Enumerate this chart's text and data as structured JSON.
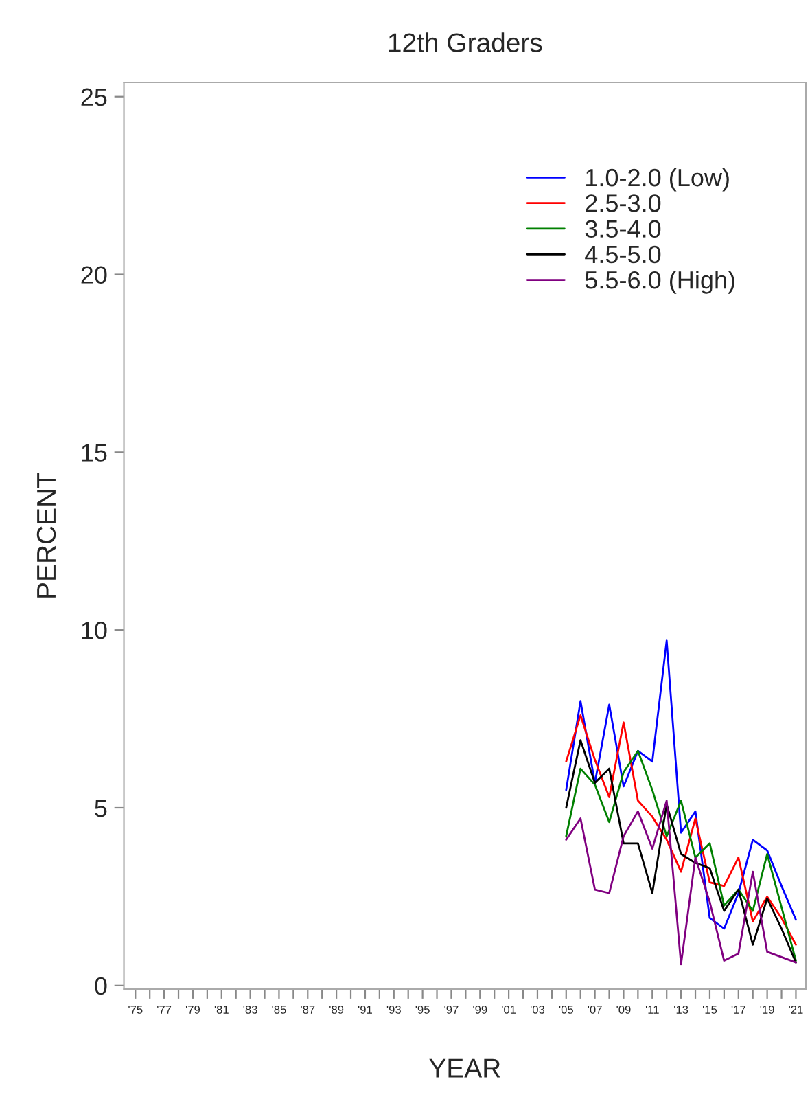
{
  "chart_data": {
    "type": "line",
    "title": "12th Graders",
    "xlabel": "YEAR",
    "ylabel": "PERCENT",
    "x": [
      2005,
      2006,
      2007,
      2008,
      2009,
      2010,
      2011,
      2012,
      2013,
      2014,
      2015,
      2016,
      2017,
      2018,
      2019,
      2020,
      2021
    ],
    "series": [
      {
        "name": "1.0-2.0 (Low)",
        "color": "#0000ff",
        "values": [
          5.5,
          8.0,
          5.7,
          7.9,
          5.6,
          6.6,
          6.3,
          9.7,
          4.3,
          4.9,
          1.9,
          1.6,
          2.6,
          4.1,
          3.8,
          2.8,
          1.85
        ]
      },
      {
        "name": "2.5-3.0",
        "color": "#ff0000",
        "values": [
          6.3,
          7.6,
          6.35,
          5.3,
          7.4,
          5.2,
          4.75,
          4.1,
          3.2,
          4.7,
          2.9,
          2.8,
          3.6,
          1.8,
          2.5,
          1.9,
          1.15
        ]
      },
      {
        "name": "3.5-4.0",
        "color": "#008000",
        "values": [
          4.2,
          6.1,
          5.65,
          4.6,
          6.0,
          6.6,
          5.5,
          4.2,
          5.2,
          3.6,
          4.0,
          2.25,
          2.7,
          2.1,
          3.7,
          2.2,
          0.7
        ]
      },
      {
        "name": "4.5-5.0",
        "color": "#000000",
        "values": [
          5.0,
          6.9,
          5.7,
          6.1,
          4.0,
          4.0,
          2.6,
          5.1,
          3.7,
          3.45,
          3.3,
          2.1,
          2.7,
          1.15,
          2.45,
          1.6,
          0.65
        ]
      },
      {
        "name": "5.5-6.0 (High)",
        "color": "#800080",
        "values": [
          4.1,
          4.7,
          2.7,
          2.6,
          4.2,
          4.9,
          3.85,
          5.2,
          0.6,
          3.6,
          2.35,
          0.7,
          0.9,
          3.2,
          0.95,
          0.8,
          0.65
        ]
      }
    ],
    "xlim": [
      1974.2,
      2021.7
    ],
    "ylim": [
      -0.1,
      25.4
    ],
    "xticks": [
      {
        "value": 1975,
        "label": "'75"
      },
      {
        "value": 1976,
        "label": null
      },
      {
        "value": 1977,
        "label": "'77"
      },
      {
        "value": 1978,
        "label": null
      },
      {
        "value": 1979,
        "label": "'79"
      },
      {
        "value": 1980,
        "label": null
      },
      {
        "value": 1981,
        "label": "'81"
      },
      {
        "value": 1982,
        "label": null
      },
      {
        "value": 1983,
        "label": "'83"
      },
      {
        "value": 1984,
        "label": null
      },
      {
        "value": 1985,
        "label": "'85"
      },
      {
        "value": 1986,
        "label": null
      },
      {
        "value": 1987,
        "label": "'87"
      },
      {
        "value": 1988,
        "label": null
      },
      {
        "value": 1989,
        "label": "'89"
      },
      {
        "value": 1990,
        "label": null
      },
      {
        "value": 1991,
        "label": "'91"
      },
      {
        "value": 1992,
        "label": null
      },
      {
        "value": 1993,
        "label": "'93"
      },
      {
        "value": 1994,
        "label": null
      },
      {
        "value": 1995,
        "label": "'95"
      },
      {
        "value": 1996,
        "label": null
      },
      {
        "value": 1997,
        "label": "'97"
      },
      {
        "value": 1998,
        "label": null
      },
      {
        "value": 1999,
        "label": "'99"
      },
      {
        "value": 2000,
        "label": null
      },
      {
        "value": 2001,
        "label": "'01"
      },
      {
        "value": 2002,
        "label": null
      },
      {
        "value": 2003,
        "label": "'03"
      },
      {
        "value": 2004,
        "label": null
      },
      {
        "value": 2005,
        "label": "'05"
      },
      {
        "value": 2006,
        "label": null
      },
      {
        "value": 2007,
        "label": "'07"
      },
      {
        "value": 2008,
        "label": null
      },
      {
        "value": 2009,
        "label": "'09"
      },
      {
        "value": 2010,
        "label": null
      },
      {
        "value": 2011,
        "label": "'11"
      },
      {
        "value": 2012,
        "label": null
      },
      {
        "value": 2013,
        "label": "'13"
      },
      {
        "value": 2014,
        "label": null
      },
      {
        "value": 2015,
        "label": "'15"
      },
      {
        "value": 2016,
        "label": null
      },
      {
        "value": 2017,
        "label": "'17"
      },
      {
        "value": 2018,
        "label": null
      },
      {
        "value": 2019,
        "label": "'19"
      },
      {
        "value": 2020,
        "label": null
      },
      {
        "value": 2021,
        "label": "'21"
      }
    ],
    "yticks": [
      0,
      5,
      10,
      15,
      20,
      25
    ],
    "grid": false,
    "legend": "top right",
    "marker": "none",
    "line_style": "solid"
  }
}
